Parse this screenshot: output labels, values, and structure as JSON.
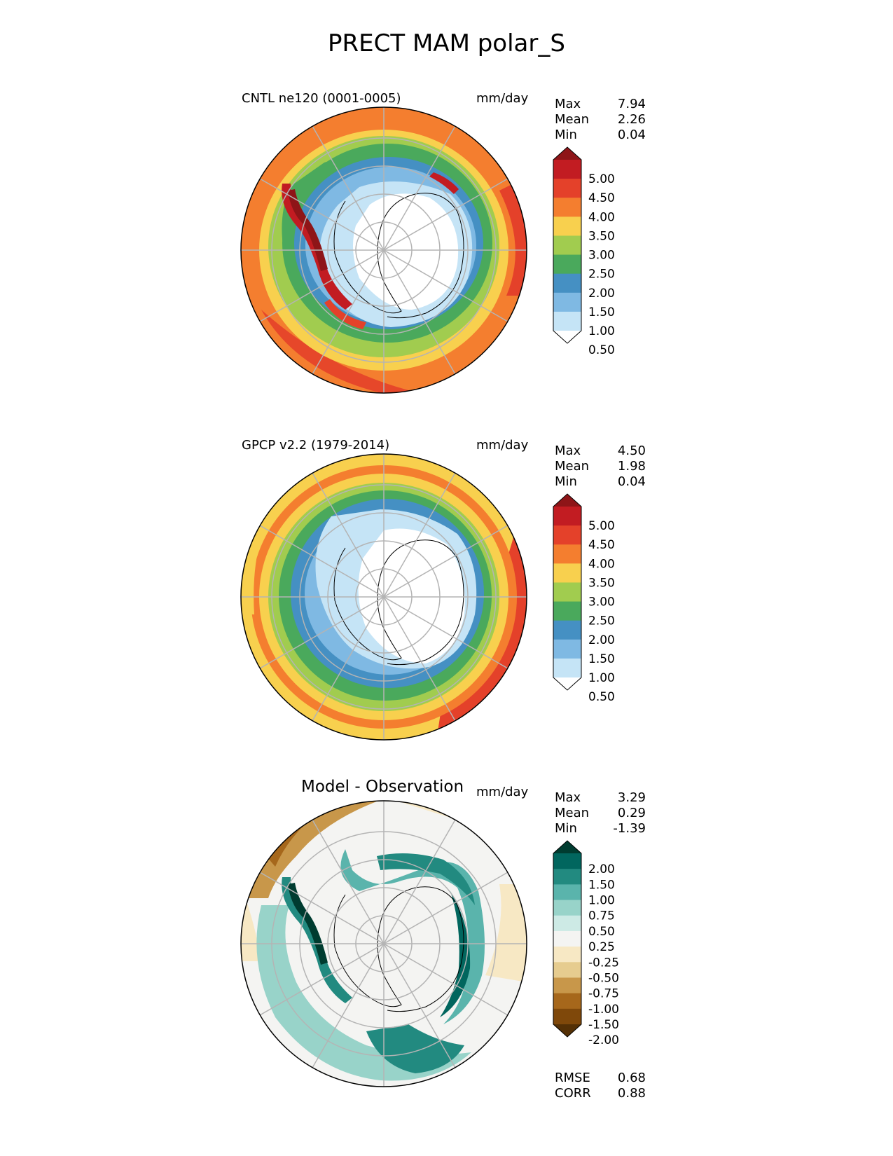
{
  "figure": {
    "title": "PRECT MAM polar_S"
  },
  "panels": [
    {
      "title": "CNTL ne120 (0001-0005)",
      "units": "mm/day",
      "stats": {
        "max_label": "Max",
        "max": "7.94",
        "mean_label": "Mean",
        "mean": "2.26",
        "min_label": "Min",
        "min": "0.04"
      },
      "colorbar": {
        "labels": [
          "5.00",
          "4.50",
          "4.00",
          "3.50",
          "3.00",
          "2.50",
          "2.00",
          "1.50",
          "1.00",
          "0.50"
        ],
        "colors": [
          "#8e1518",
          "#c21c22",
          "#e4412a",
          "#f47e2f",
          "#f8d04e",
          "#a1cc4f",
          "#4aa95c",
          "#4590c3",
          "#7fb9e3",
          "#c5e4f6",
          "#ffffff"
        ]
      }
    },
    {
      "title": "GPCP v2.2 (1979-2014)",
      "units": "mm/day",
      "stats": {
        "max_label": "Max",
        "max": "4.50",
        "mean_label": "Mean",
        "mean": "1.98",
        "min_label": "Min",
        "min": "0.04"
      },
      "colorbar": {
        "labels": [
          "5.00",
          "4.50",
          "4.00",
          "3.50",
          "3.00",
          "2.50",
          "2.00",
          "1.50",
          "1.00",
          "0.50"
        ],
        "colors": [
          "#8e1518",
          "#c21c22",
          "#e4412a",
          "#f47e2f",
          "#f8d04e",
          "#a1cc4f",
          "#4aa95c",
          "#4590c3",
          "#7fb9e3",
          "#c5e4f6",
          "#ffffff"
        ]
      }
    },
    {
      "title": "Model - Observation",
      "units": "mm/day",
      "stats": {
        "max_label": "Max",
        "max": "3.29",
        "mean_label": "Mean",
        "mean": "0.29",
        "min_label": "Min",
        "min": "-1.39"
      },
      "colorbar": {
        "labels": [
          "2.00",
          "1.50",
          "1.00",
          "0.75",
          "0.50",
          "0.25",
          "-0.25",
          "-0.50",
          "-0.75",
          "-1.00",
          "-1.50",
          "-2.00"
        ],
        "colors": [
          "#003c30",
          "#01665e",
          "#228a80",
          "#5ab4ac",
          "#98d3c9",
          "#cdeae5",
          "#f4f4f2",
          "#f7e8c4",
          "#e6cc8f",
          "#c8974a",
          "#a6671b",
          "#7f480a",
          "#543005"
        ]
      },
      "metrics": {
        "rmse_label": "RMSE",
        "rmse": "0.68",
        "corr_label": "CORR",
        "corr": "0.88"
      }
    }
  ]
}
